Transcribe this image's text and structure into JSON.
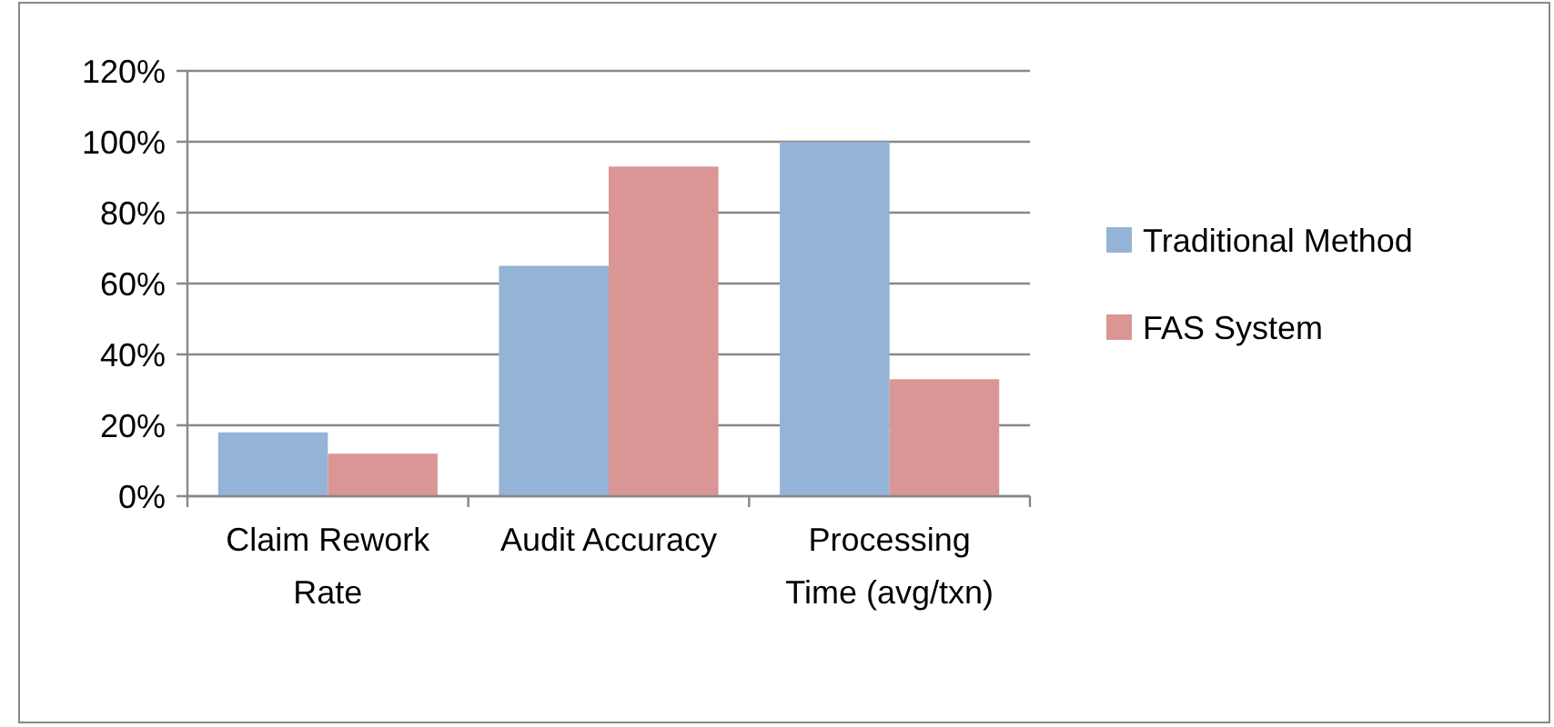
{
  "chart_data": {
    "type": "bar",
    "categories": [
      "Claim Rework Rate",
      "Audit Accuracy",
      "Processing Time (avg/txn)"
    ],
    "series": [
      {
        "name": "Traditional Method",
        "color": "#95b3d7",
        "values": [
          18,
          65,
          100
        ]
      },
      {
        "name": "FAS System",
        "color": "#d99694",
        "values": [
          12,
          93,
          33
        ]
      }
    ],
    "ylim": [
      0,
      120
    ],
    "yticks": [
      {
        "value": 0,
        "label": "0%"
      },
      {
        "value": 20,
        "label": "20%"
      },
      {
        "value": 40,
        "label": "40%"
      },
      {
        "value": 60,
        "label": "60%"
      },
      {
        "value": 80,
        "label": "80%"
      },
      {
        "value": 100,
        "label": "100%"
      },
      {
        "value": 120,
        "label": "120%"
      }
    ],
    "grid": "y",
    "legend": "right"
  }
}
